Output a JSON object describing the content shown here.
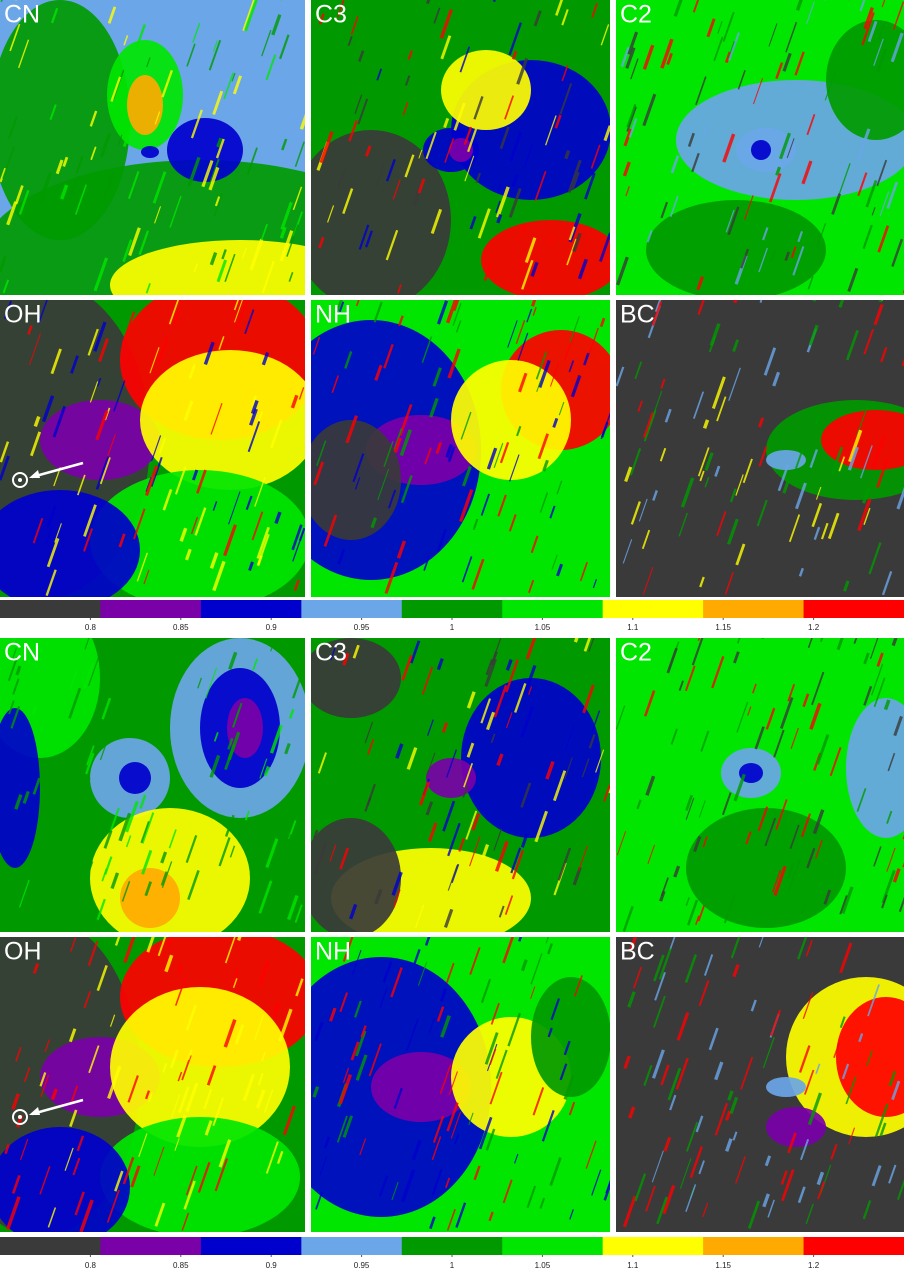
{
  "figures": [
    {
      "panels": [
        "CN",
        "C3",
        "C2",
        "OH",
        "NH",
        "BC"
      ],
      "colorbar": {
        "colors": [
          "#3a3a3a",
          "#7a00a8",
          "#0000cc",
          "#6aa6e8",
          "#009a00",
          "#00e600",
          "#ffff00",
          "#ffaa00",
          "#ff0000"
        ],
        "lim": [
          0.75,
          1.25
        ],
        "ticks": [
          0.8,
          0.85,
          0.9,
          0.95,
          1,
          1.05,
          1.1,
          1.15,
          1.2
        ]
      }
    },
    {
      "panels": [
        "CN",
        "C3",
        "C2",
        "OH",
        "NH",
        "BC"
      ],
      "colorbar": {
        "colors": [
          "#3a3a3a",
          "#7a00a8",
          "#0000cc",
          "#6aa6e8",
          "#009a00",
          "#00e600",
          "#ffff00",
          "#ffaa00",
          "#ff0000"
        ],
        "lim": [
          0.75,
          1.25
        ],
        "ticks": [
          0.8,
          0.85,
          0.9,
          0.95,
          1,
          1.05,
          1.1,
          1.15,
          1.2
        ]
      }
    }
  ]
}
